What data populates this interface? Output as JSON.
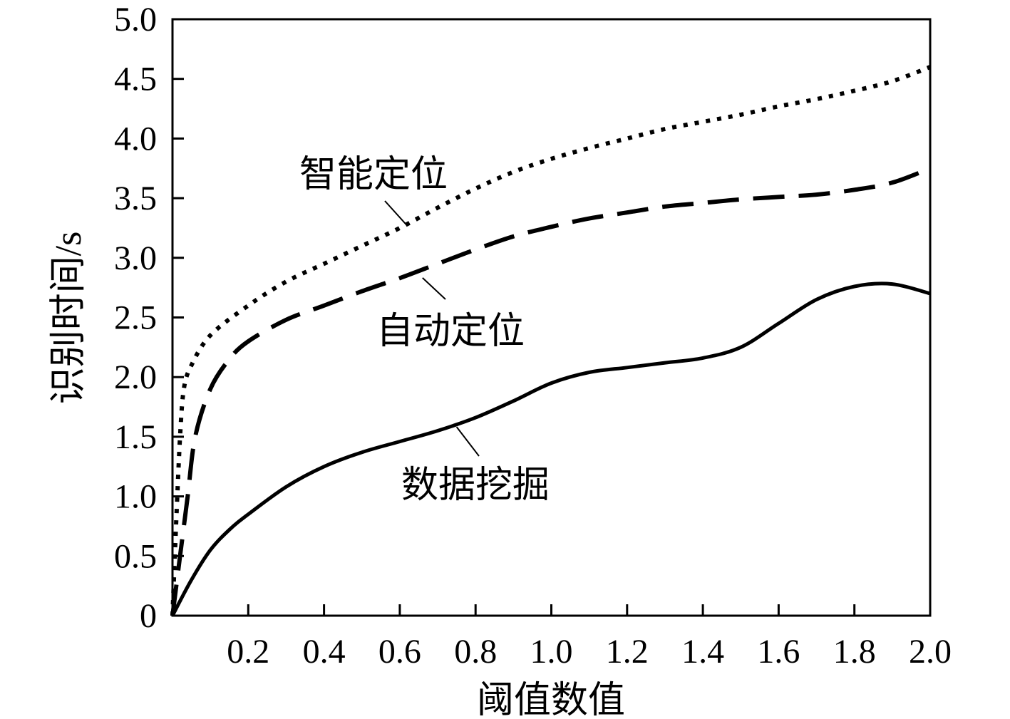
{
  "chart_data": {
    "type": "line",
    "title": "",
    "xlabel": "阈值数值",
    "ylabel": "识别时间/s",
    "xlim": [
      0,
      2.0
    ],
    "ylim": [
      0,
      5.0
    ],
    "x_ticks": [
      0.2,
      0.4,
      0.6,
      0.8,
      1.0,
      1.2,
      1.4,
      1.6,
      1.8,
      2.0
    ],
    "x_tick_labels": [
      "0.2",
      "0.4",
      "0.6",
      "0.8",
      "1.0",
      "1.2",
      "1.4",
      "1.6",
      "1.8",
      "2.0"
    ],
    "y_ticks": [
      0,
      0.5,
      1.0,
      1.5,
      2.0,
      2.5,
      3.0,
      3.5,
      4.0,
      4.5,
      5.0
    ],
    "y_tick_labels": [
      "0",
      "0.5",
      "1.0",
      "1.5",
      "2.0",
      "2.5",
      "3.0",
      "3.5",
      "4.0",
      "4.5",
      "5.0"
    ],
    "grid": false,
    "legend": "none (series labeled by annotations)",
    "series": [
      {
        "name": "智能定位",
        "style": "dotted",
        "x": [
          0,
          0.01,
          0.02,
          0.03,
          0.05,
          0.1,
          0.2,
          0.3,
          0.4,
          0.5,
          0.6,
          0.7,
          0.8,
          0.9,
          1.0,
          1.1,
          1.2,
          1.3,
          1.4,
          1.5,
          1.6,
          1.7,
          1.8,
          1.9,
          2.0
        ],
        "y": [
          0,
          0.8,
          1.5,
          1.9,
          2.1,
          2.35,
          2.6,
          2.8,
          2.95,
          3.1,
          3.25,
          3.42,
          3.58,
          3.72,
          3.83,
          3.92,
          4.0,
          4.08,
          4.14,
          4.2,
          4.27,
          4.33,
          4.4,
          4.48,
          4.6
        ]
      },
      {
        "name": "自动定位",
        "style": "dashed",
        "x": [
          0,
          0.02,
          0.04,
          0.06,
          0.1,
          0.15,
          0.2,
          0.3,
          0.4,
          0.5,
          0.6,
          0.7,
          0.8,
          0.9,
          1.0,
          1.1,
          1.2,
          1.3,
          1.4,
          1.5,
          1.6,
          1.7,
          1.8,
          1.9,
          2.0
        ],
        "y": [
          0,
          0.5,
          1.0,
          1.5,
          1.9,
          2.15,
          2.3,
          2.48,
          2.6,
          2.72,
          2.83,
          2.95,
          3.07,
          3.18,
          3.26,
          3.33,
          3.38,
          3.43,
          3.46,
          3.49,
          3.51,
          3.53,
          3.57,
          3.63,
          3.75
        ]
      },
      {
        "name": "数据挖掘",
        "style": "solid",
        "x": [
          0,
          0.05,
          0.1,
          0.15,
          0.2,
          0.3,
          0.4,
          0.5,
          0.6,
          0.7,
          0.8,
          0.9,
          1.0,
          1.1,
          1.2,
          1.3,
          1.4,
          1.5,
          1.6,
          1.7,
          1.8,
          1.9,
          2.0
        ],
        "y": [
          0,
          0.3,
          0.55,
          0.72,
          0.85,
          1.08,
          1.25,
          1.37,
          1.46,
          1.55,
          1.66,
          1.8,
          1.95,
          2.04,
          2.08,
          2.12,
          2.16,
          2.25,
          2.45,
          2.65,
          2.76,
          2.78,
          2.7
        ]
      }
    ],
    "annotations": [
      {
        "text": "智能定位",
        "series": "智能定位",
        "x": 0.62,
        "y": 3.25
      },
      {
        "text": "自动定位",
        "series": "自动定位",
        "x": 0.66,
        "y": 2.85
      },
      {
        "text": "数据挖掘",
        "series": "数据挖掘",
        "x": 0.75,
        "y": 1.6
      }
    ]
  }
}
